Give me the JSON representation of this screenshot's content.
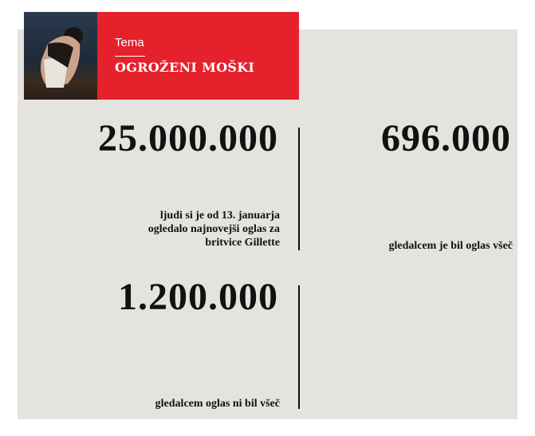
{
  "header": {
    "kicker": "Tema",
    "title": "OGROŽENI MOŠKI"
  },
  "stats": [
    {
      "value": "25.000.000",
      "caption": [
        "ljudi si je od 13. januarja",
        "ogledalo najnovejši oglas za",
        "britvice Gillette"
      ]
    },
    {
      "value": "696.000",
      "caption": [
        "gledalcem je bil oglas všeč"
      ]
    },
    {
      "value": "1.200.000",
      "caption": [
        "gledalcem oglas ni bil všeč"
      ]
    }
  ],
  "colors": {
    "accent": "#e5212b",
    "background": "#e4e3de",
    "text": "#111111"
  }
}
